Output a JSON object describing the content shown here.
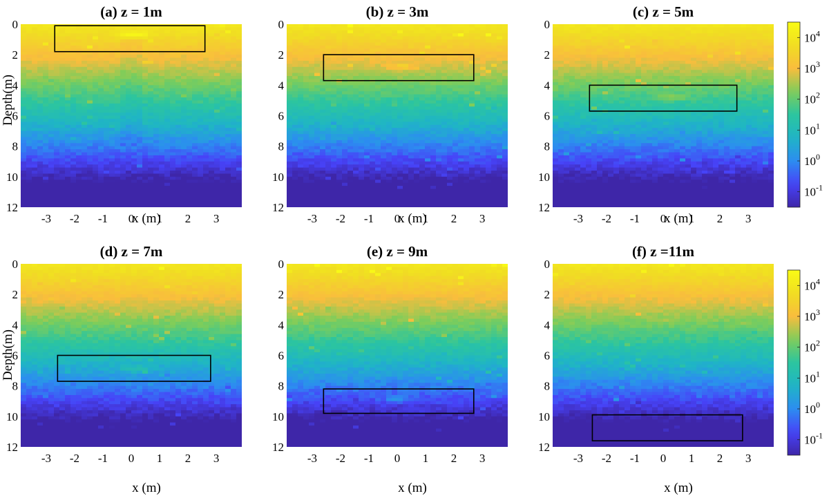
{
  "chart_data": {
    "type": "heatmap",
    "figure_title": "",
    "color_scale": {
      "type": "log10",
      "min_exponent": -1.5,
      "max_exponent": 4.5,
      "tick_labels": [
        {
          "base": "10",
          "exp": "4",
          "value_exp": 4
        },
        {
          "base": "10",
          "exp": "3",
          "value_exp": 3
        },
        {
          "base": "10",
          "exp": "2",
          "value_exp": 2
        },
        {
          "base": "10",
          "exp": "1",
          "value_exp": 1
        },
        {
          "base": "10",
          "exp": "0",
          "value_exp": 0
        },
        {
          "base": "10",
          "exp": "-1",
          "value_exp": -1
        }
      ],
      "colormap": [
        "#3e26a8",
        "#4743f8",
        "#2c8df0",
        "#1fb5c5",
        "#2cc59f",
        "#7ecd5a",
        "#f9bd3d",
        "#f0de22",
        "#f9fb15"
      ]
    },
    "x_axis": {
      "label": "x (m)",
      "range": [
        -3.9,
        3.9
      ],
      "ticks": [
        -3,
        -2,
        -1,
        0,
        1,
        2,
        3
      ],
      "tick_labels": [
        "-3",
        "-2",
        "-1",
        "0",
        "1",
        "2",
        "3"
      ]
    },
    "y_axis": {
      "label": "Depth(m)",
      "range": [
        0,
        12
      ],
      "ticks": [
        0,
        2,
        4,
        6,
        8,
        10,
        12
      ],
      "tick_labels": [
        "0",
        "2",
        "4",
        "6",
        "8",
        "10",
        "12"
      ],
      "inverted": true
    },
    "panels": [
      {
        "title": "(a) z = 1m",
        "target_depth": 1,
        "box": {
          "x0": -2.7,
          "x1": 2.6,
          "y0": 0.1,
          "y1": 1.8
        },
        "hotspot": {
          "x": 0.1,
          "depth": 0.7
        }
      },
      {
        "title": "(b) z = 3m",
        "target_depth": 3,
        "box": {
          "x0": -2.6,
          "x1": 2.7,
          "y0": 2.0,
          "y1": 3.7
        },
        "hotspot": {
          "x": 0.2,
          "depth": 2.8
        }
      },
      {
        "title": "(c) z = 5m",
        "target_depth": 5,
        "box": {
          "x0": -2.6,
          "x1": 2.6,
          "y0": 4.0,
          "y1": 5.7
        },
        "hotspot": {
          "x": 0.3,
          "depth": 4.8
        }
      },
      {
        "title": "(d) z = 7m",
        "target_depth": 7,
        "box": {
          "x0": -2.6,
          "x1": 2.8,
          "y0": 6.0,
          "y1": 7.7
        },
        "hotspot": {
          "x": 0.1,
          "depth": 6.9
        }
      },
      {
        "title": "(e) z = 9m",
        "target_depth": 9,
        "box": {
          "x0": -2.6,
          "x1": 2.7,
          "y0": 8.2,
          "y1": 9.8
        },
        "hotspot": {
          "x": 0.0,
          "depth": 8.9
        }
      },
      {
        "title": "(f) z =11m",
        "target_depth": 11,
        "box": {
          "x0": -2.5,
          "x1": 2.8,
          "y0": 9.9,
          "y1": 11.6
        },
        "hotspot": {
          "x": 0.2,
          "depth": 10.8
        }
      }
    ]
  }
}
